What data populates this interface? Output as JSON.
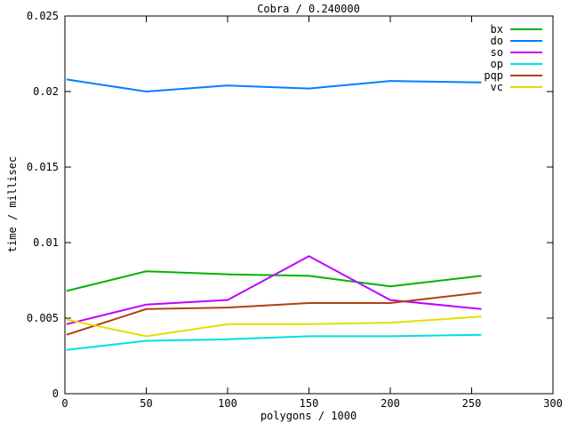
{
  "window": {
    "background": "#ffffff"
  },
  "chart_data": {
    "type": "line",
    "title": "Cobra / 0.240000",
    "xlabel": "polygons / 1000",
    "ylabel": "time / millisec",
    "xlim": [
      0,
      300
    ],
    "ylim": [
      0,
      0.025
    ],
    "grid": false,
    "border": true,
    "axis_color": "#000000",
    "text_color": "#000000",
    "xticks": {
      "values": [
        0,
        50,
        100,
        150,
        200,
        250,
        300
      ],
      "labels": [
        "0",
        "50",
        "100",
        "150",
        "200",
        "250",
        "300"
      ]
    },
    "yticks": {
      "values": [
        0,
        0.005,
        0.01,
        0.015,
        0.02,
        0.025
      ],
      "labels": [
        "0",
        "0.005",
        "0.01",
        "0.015",
        "0.02",
        "0.025"
      ]
    },
    "x": [
      1,
      50,
      100,
      150,
      200,
      256
    ],
    "series": [
      {
        "name": "bx",
        "color": "#00b400",
        "values": [
          0.0068,
          0.0081,
          0.0079,
          0.0078,
          0.0071,
          0.0078
        ]
      },
      {
        "name": "do",
        "color": "#0080ff",
        "values": [
          0.0208,
          0.02,
          0.0204,
          0.0202,
          0.0207,
          0.0206
        ]
      },
      {
        "name": "so",
        "color": "#c000ff",
        "values": [
          0.0046,
          0.0059,
          0.0062,
          0.0091,
          0.0062,
          0.0056
        ]
      },
      {
        "name": "op",
        "color": "#00e0e0",
        "values": [
          0.0029,
          0.0035,
          0.0036,
          0.0038,
          0.0038,
          0.0039
        ]
      },
      {
        "name": "pqp",
        "color": "#b04010",
        "values": [
          0.0039,
          0.0056,
          0.0057,
          0.006,
          0.006,
          0.0067
        ]
      },
      {
        "name": "vc",
        "color": "#e0e000",
        "values": [
          0.0049,
          0.0038,
          0.0046,
          0.0046,
          0.0047,
          0.0051
        ]
      }
    ],
    "legend": {
      "position": "top-right",
      "entries": [
        "bx",
        "do",
        "so",
        "op",
        "pqp",
        "vc"
      ]
    }
  }
}
